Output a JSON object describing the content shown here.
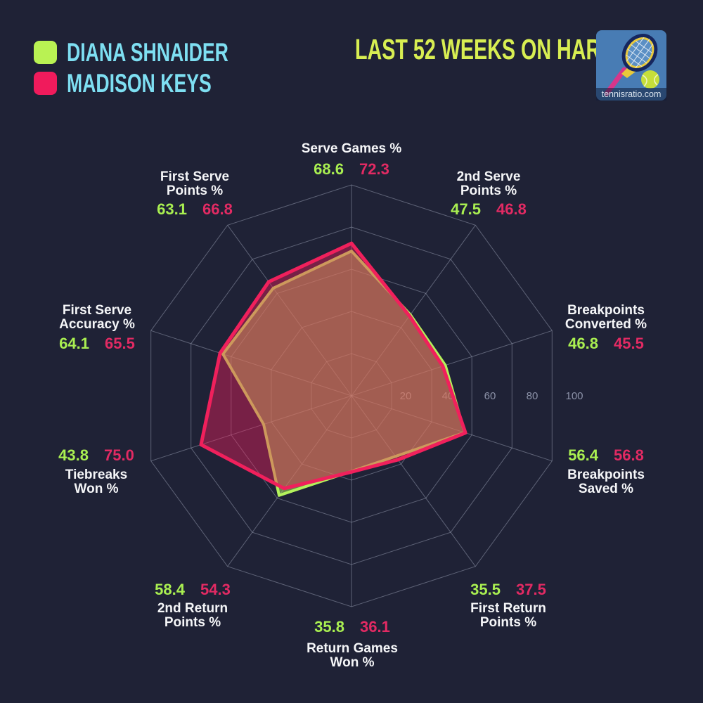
{
  "header": {
    "title": "LAST 52 WEEKS ON HARD",
    "logo_text": "tennisratio.com"
  },
  "legend": {
    "players": [
      {
        "name": "DIANA SHNAIDER",
        "color": "#B9F253"
      },
      {
        "name": "MADISON KEYS",
        "color": "#F01B5C"
      }
    ]
  },
  "colors": {
    "background": "#1F2236",
    "title": "#D8EE52",
    "player_name": "#7EDFF2",
    "axis_label": "#F5F6F8",
    "tick_label": "#8C92A8",
    "grid": "#9BA1B6",
    "diana_line": "#B3F25C",
    "diana_value_text": "#A9EF51",
    "madison_line": "#F0205C",
    "madison_value_text": "#E22A63"
  },
  "chart_data": {
    "type": "radar",
    "title": "LAST 52 WEEKS ON HARD",
    "grid_shape": "polygon",
    "axis_range": [
      0,
      100
    ],
    "radial_ticks": [
      20,
      40,
      60,
      80,
      100
    ],
    "legend_position": "top-left",
    "categories": [
      "Serve Games %",
      "2nd Serve Points %",
      "Breakpoints Converted %",
      "Breakpoints Saved %",
      "First Return Points %",
      "Return Games Won %",
      "2nd Return Points %",
      "Tiebreaks Won %",
      "First Serve Accuracy %",
      "First Serve Points %"
    ],
    "axes": [
      {
        "lines": [
          "Serve Games %"
        ]
      },
      {
        "lines": [
          "2nd Serve",
          "Points %"
        ]
      },
      {
        "lines": [
          "Breakpoints",
          "Converted %"
        ]
      },
      {
        "lines": [
          "Breakpoints",
          "Saved %"
        ]
      },
      {
        "lines": [
          "First Return",
          "Points %"
        ]
      },
      {
        "lines": [
          "Return Games",
          "Won %"
        ]
      },
      {
        "lines": [
          "2nd Return",
          "Points %"
        ]
      },
      {
        "lines": [
          "Tiebreaks",
          "Won %"
        ]
      },
      {
        "lines": [
          "First Serve",
          "Accuracy %"
        ]
      },
      {
        "lines": [
          "First Serve",
          "Points %"
        ]
      }
    ],
    "series": [
      {
        "name": "Diana Shnaider",
        "color": "#B3F25C",
        "fill_opacity": 0.5,
        "values": [
          68.6,
          47.5,
          46.8,
          56.4,
          35.5,
          35.8,
          58.4,
          43.8,
          64.1,
          63.1
        ]
      },
      {
        "name": "Madison Keys",
        "color": "#F0205C",
        "fill_opacity": 0.42,
        "values": [
          72.3,
          46.8,
          45.5,
          56.8,
          37.5,
          36.1,
          54.3,
          75.0,
          65.5,
          66.8
        ]
      }
    ]
  }
}
